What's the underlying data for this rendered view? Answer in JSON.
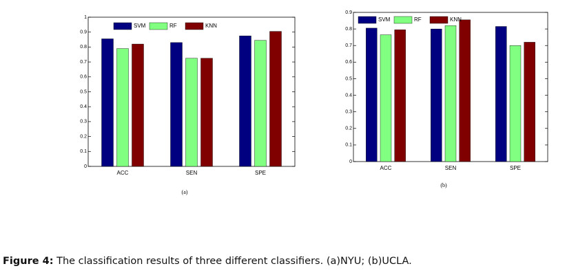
{
  "chart_data": [
    {
      "type": "bar",
      "subcaption": "(a)",
      "categories": [
        "ACC",
        "SEN",
        "SPE"
      ],
      "series": [
        {
          "name": "SVM",
          "color": "#000080",
          "values": [
            0.855,
            0.83,
            0.875
          ]
        },
        {
          "name": "RF",
          "color": "#80ff80",
          "values": [
            0.79,
            0.725,
            0.845
          ]
        },
        {
          "name": "KNN",
          "color": "#800000",
          "values": [
            0.82,
            0.725,
            0.905
          ]
        }
      ],
      "ylim": [
        0,
        1
      ],
      "yticks": [
        0,
        0.1,
        0.2,
        0.3,
        0.4,
        0.5,
        0.6,
        0.7,
        0.8,
        0.9,
        1
      ]
    },
    {
      "type": "bar",
      "subcaption": "(b)",
      "categories": [
        "ACC",
        "SEN",
        "SPE"
      ],
      "series": [
        {
          "name": "SVM",
          "color": "#000080",
          "values": [
            0.805,
            0.8,
            0.815
          ]
        },
        {
          "name": "RF",
          "color": "#80ff80",
          "values": [
            0.765,
            0.82,
            0.7
          ]
        },
        {
          "name": "KNN",
          "color": "#800000",
          "values": [
            0.795,
            0.855,
            0.72
          ]
        }
      ],
      "ylim": [
        0,
        0.9
      ],
      "yticks": [
        0,
        0.1,
        0.2,
        0.3,
        0.4,
        0.5,
        0.6,
        0.7,
        0.8,
        0.9
      ]
    }
  ],
  "caption": {
    "label": "Figure 4:",
    "text": "The classification results of three different classifiers. (a)NYU; (b)UCLA."
  }
}
